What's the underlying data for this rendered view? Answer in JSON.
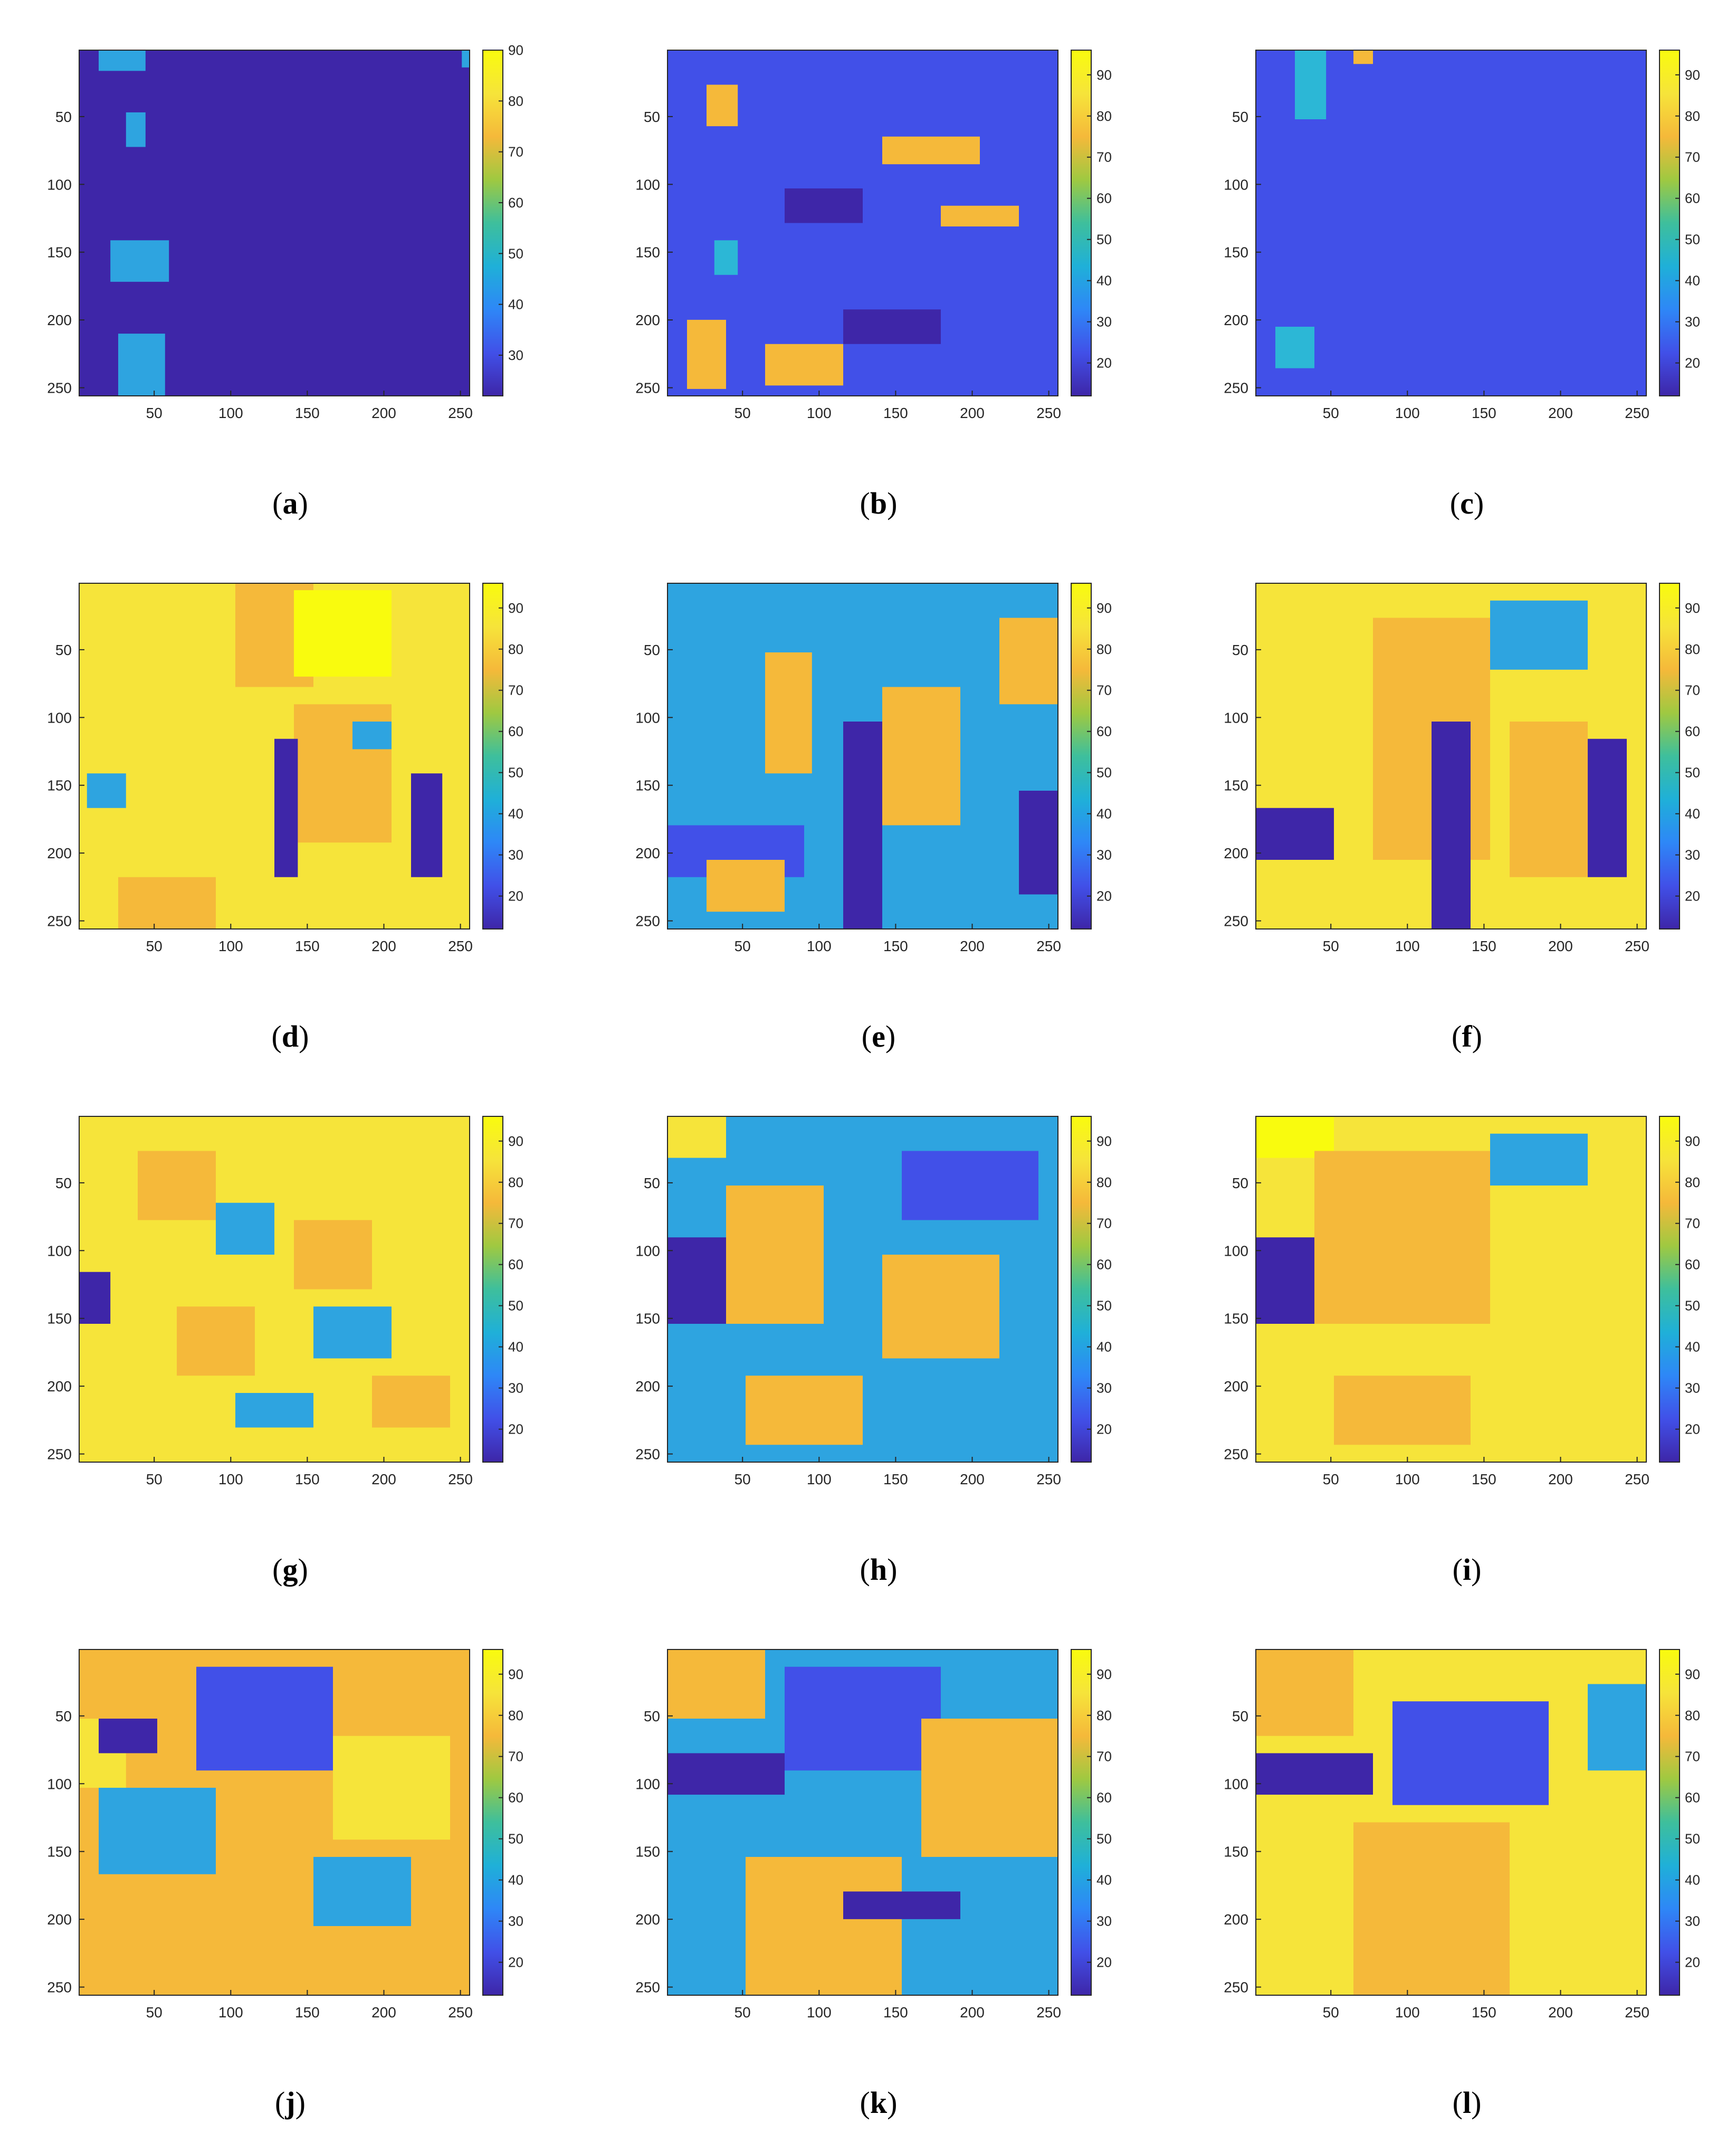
{
  "colors": {
    "c1": "#3e26a8",
    "c2": "#4150e8",
    "c3": "#2ea4e0",
    "c4": "#2cb7d6",
    "c5": "#f5b93a",
    "c6": "#f6e43a",
    "c7": "#f9fb0e"
  },
  "colormap": "parula",
  "chart_data": [
    {
      "type": "heatmap",
      "panel": "a",
      "caption_paren_open": "(",
      "caption_letter": "a",
      "caption_paren_close": ")",
      "xlim": [
        1,
        256
      ],
      "ylim": [
        1,
        256
      ],
      "xticks": [
        "50",
        "100",
        "150",
        "200",
        "250"
      ],
      "yticks": [
        "50",
        "100",
        "150",
        "200",
        "250"
      ],
      "clim": [
        22,
        90
      ],
      "colorbar_ticks": [
        "30",
        "40",
        "50",
        "60",
        "70",
        "80",
        "90"
      ],
      "base": "c1",
      "patches": [
        [
          "c3",
          0.05,
          0.0,
          0.12,
          0.06
        ],
        [
          "c3",
          0.12,
          0.18,
          0.05,
          0.1
        ],
        [
          "c3",
          0.08,
          0.55,
          0.15,
          0.12
        ],
        [
          "c3",
          0.1,
          0.82,
          0.12,
          0.18
        ],
        [
          "c3",
          0.98,
          0.0,
          0.02,
          0.05
        ]
      ]
    },
    {
      "type": "heatmap",
      "panel": "b",
      "caption_paren_open": "(",
      "caption_letter": "b",
      "caption_paren_close": ")",
      "xlim": [
        1,
        256
      ],
      "ylim": [
        1,
        256
      ],
      "xticks": [
        "50",
        "100",
        "150",
        "200",
        "250"
      ],
      "yticks": [
        "50",
        "100",
        "150",
        "200",
        "250"
      ],
      "clim": [
        12,
        96
      ],
      "colorbar_ticks": [
        "20",
        "30",
        "40",
        "50",
        "60",
        "70",
        "80",
        "90"
      ],
      "base": "c2",
      "patches": [
        [
          "c5",
          0.1,
          0.1,
          0.08,
          0.12
        ],
        [
          "c5",
          0.55,
          0.25,
          0.25,
          0.08
        ],
        [
          "c5",
          0.7,
          0.45,
          0.2,
          0.06
        ],
        [
          "c1",
          0.3,
          0.4,
          0.2,
          0.1
        ],
        [
          "c5",
          0.05,
          0.78,
          0.1,
          0.2
        ],
        [
          "c1",
          0.45,
          0.75,
          0.25,
          0.1
        ],
        [
          "c5",
          0.25,
          0.85,
          0.2,
          0.12
        ],
        [
          "c4",
          0.12,
          0.55,
          0.06,
          0.1
        ]
      ]
    },
    {
      "type": "heatmap",
      "panel": "c",
      "caption_paren_open": "(",
      "caption_letter": "c",
      "caption_paren_close": ")",
      "xlim": [
        1,
        256
      ],
      "ylim": [
        1,
        256
      ],
      "xticks": [
        "50",
        "100",
        "150",
        "200",
        "250"
      ],
      "yticks": [
        "50",
        "100",
        "150",
        "200",
        "250"
      ],
      "clim": [
        12,
        96
      ],
      "colorbar_ticks": [
        "20",
        "30",
        "40",
        "50",
        "60",
        "70",
        "80",
        "90"
      ],
      "base": "c2",
      "patches": [
        [
          "c4",
          0.1,
          0.0,
          0.08,
          0.2
        ],
        [
          "c5",
          0.25,
          0.0,
          0.05,
          0.04
        ],
        [
          "c4",
          0.05,
          0.8,
          0.1,
          0.12
        ]
      ]
    },
    {
      "type": "heatmap",
      "panel": "d",
      "caption_paren_open": "(",
      "caption_letter": "d",
      "caption_paren_close": ")",
      "xlim": [
        1,
        256
      ],
      "ylim": [
        1,
        256
      ],
      "xticks": [
        "50",
        "100",
        "150",
        "200",
        "250"
      ],
      "yticks": [
        "50",
        "100",
        "150",
        "200",
        "250"
      ],
      "clim": [
        12,
        96
      ],
      "colorbar_ticks": [
        "20",
        "30",
        "40",
        "50",
        "60",
        "70",
        "80",
        "90"
      ],
      "base": "c6",
      "patches": [
        [
          "c5",
          0.4,
          0.0,
          0.2,
          0.3
        ],
        [
          "c7",
          0.55,
          0.02,
          0.25,
          0.25
        ],
        [
          "c5",
          0.55,
          0.35,
          0.25,
          0.4
        ],
        [
          "c3",
          0.02,
          0.55,
          0.1,
          0.1
        ],
        [
          "c1",
          0.5,
          0.45,
          0.06,
          0.4
        ],
        [
          "c1",
          0.85,
          0.55,
          0.08,
          0.3
        ],
        [
          "c5",
          0.1,
          0.85,
          0.25,
          0.15
        ],
        [
          "c3",
          0.7,
          0.4,
          0.1,
          0.08
        ]
      ]
    },
    {
      "type": "heatmap",
      "panel": "e",
      "caption_paren_open": "(",
      "caption_letter": "e",
      "caption_paren_close": ")",
      "xlim": [
        1,
        256
      ],
      "ylim": [
        1,
        256
      ],
      "xticks": [
        "50",
        "100",
        "150",
        "200",
        "250"
      ],
      "yticks": [
        "50",
        "100",
        "150",
        "200",
        "250"
      ],
      "clim": [
        12,
        96
      ],
      "colorbar_ticks": [
        "20",
        "30",
        "40",
        "50",
        "60",
        "70",
        "80",
        "90"
      ],
      "base": "c3",
      "patches": [
        [
          "c5",
          0.25,
          0.2,
          0.12,
          0.35
        ],
        [
          "c5",
          0.55,
          0.3,
          0.2,
          0.4
        ],
        [
          "c1",
          0.45,
          0.4,
          0.1,
          0.6
        ],
        [
          "c2",
          0.0,
          0.7,
          0.35,
          0.15
        ],
        [
          "c5",
          0.1,
          0.8,
          0.2,
          0.15
        ],
        [
          "c1",
          0.9,
          0.6,
          0.1,
          0.3
        ],
        [
          "c5",
          0.85,
          0.1,
          0.15,
          0.25
        ]
      ]
    },
    {
      "type": "heatmap",
      "panel": "f",
      "caption_paren_open": "(",
      "caption_letter": "f",
      "caption_paren_close": ")",
      "xlim": [
        1,
        256
      ],
      "ylim": [
        1,
        256
      ],
      "xticks": [
        "50",
        "100",
        "150",
        "200",
        "250"
      ],
      "yticks": [
        "50",
        "100",
        "150",
        "200",
        "250"
      ],
      "clim": [
        12,
        96
      ],
      "colorbar_ticks": [
        "20",
        "30",
        "40",
        "50",
        "60",
        "70",
        "80",
        "90"
      ],
      "base": "c6",
      "patches": [
        [
          "c5",
          0.3,
          0.1,
          0.3,
          0.7
        ],
        [
          "c3",
          0.6,
          0.05,
          0.25,
          0.2
        ],
        [
          "c1",
          0.45,
          0.4,
          0.1,
          0.6
        ],
        [
          "c1",
          0.85,
          0.45,
          0.1,
          0.4
        ],
        [
          "c1",
          0.0,
          0.65,
          0.2,
          0.15
        ],
        [
          "c5",
          0.65,
          0.4,
          0.2,
          0.45
        ]
      ]
    },
    {
      "type": "heatmap",
      "panel": "g",
      "caption_paren_open": "(",
      "caption_letter": "g",
      "caption_paren_close": ")",
      "xlim": [
        1,
        256
      ],
      "ylim": [
        1,
        256
      ],
      "xticks": [
        "50",
        "100",
        "150",
        "200",
        "250"
      ],
      "yticks": [
        "50",
        "100",
        "150",
        "200",
        "250"
      ],
      "clim": [
        12,
        96
      ],
      "colorbar_ticks": [
        "20",
        "30",
        "40",
        "50",
        "60",
        "70",
        "80",
        "90"
      ],
      "base": "c6",
      "patches": [
        [
          "c5",
          0.15,
          0.1,
          0.2,
          0.2
        ],
        [
          "c3",
          0.35,
          0.25,
          0.15,
          0.15
        ],
        [
          "c5",
          0.55,
          0.3,
          0.2,
          0.2
        ],
        [
          "c3",
          0.6,
          0.55,
          0.2,
          0.15
        ],
        [
          "c5",
          0.25,
          0.55,
          0.2,
          0.2
        ],
        [
          "c1",
          0.0,
          0.45,
          0.08,
          0.15
        ],
        [
          "c5",
          0.75,
          0.75,
          0.2,
          0.15
        ],
        [
          "c3",
          0.4,
          0.8,
          0.2,
          0.1
        ]
      ]
    },
    {
      "type": "heatmap",
      "panel": "h",
      "caption_paren_open": "(",
      "caption_letter": "h",
      "caption_paren_close": ")",
      "xlim": [
        1,
        256
      ],
      "ylim": [
        1,
        256
      ],
      "xticks": [
        "50",
        "100",
        "150",
        "200",
        "250"
      ],
      "yticks": [
        "50",
        "100",
        "150",
        "200",
        "250"
      ],
      "clim": [
        12,
        96
      ],
      "colorbar_ticks": [
        "20",
        "30",
        "40",
        "50",
        "60",
        "70",
        "80",
        "90"
      ],
      "base": "c3",
      "patches": [
        [
          "c6",
          0.0,
          0.0,
          0.15,
          0.12
        ],
        [
          "c5",
          0.15,
          0.2,
          0.25,
          0.4
        ],
        [
          "c5",
          0.55,
          0.4,
          0.3,
          0.3
        ],
        [
          "c1",
          0.0,
          0.35,
          0.15,
          0.25
        ],
        [
          "c5",
          0.2,
          0.75,
          0.3,
          0.2
        ],
        [
          "c2",
          0.6,
          0.1,
          0.35,
          0.2
        ]
      ]
    },
    {
      "type": "heatmap",
      "panel": "i",
      "caption_paren_open": "(",
      "caption_letter": "i",
      "caption_paren_close": ")",
      "xlim": [
        1,
        256
      ],
      "ylim": [
        1,
        256
      ],
      "xticks": [
        "50",
        "100",
        "150",
        "200",
        "250"
      ],
      "yticks": [
        "50",
        "100",
        "150",
        "200",
        "250"
      ],
      "clim": [
        12,
        96
      ],
      "colorbar_ticks": [
        "20",
        "30",
        "40",
        "50",
        "60",
        "70",
        "80",
        "90"
      ],
      "base": "c6",
      "patches": [
        [
          "c7",
          0.0,
          0.0,
          0.2,
          0.12
        ],
        [
          "c5",
          0.15,
          0.1,
          0.45,
          0.5
        ],
        [
          "c1",
          0.0,
          0.35,
          0.15,
          0.25
        ],
        [
          "c5",
          0.2,
          0.75,
          0.35,
          0.2
        ],
        [
          "c3",
          0.6,
          0.05,
          0.25,
          0.15
        ]
      ]
    },
    {
      "type": "heatmap",
      "panel": "j",
      "caption_paren_open": "(",
      "caption_letter": "j",
      "caption_paren_close": ")",
      "xlim": [
        1,
        256
      ],
      "ylim": [
        1,
        256
      ],
      "xticks": [
        "50",
        "100",
        "150",
        "200",
        "250"
      ],
      "yticks": [
        "50",
        "100",
        "150",
        "200",
        "250"
      ],
      "clim": [
        12,
        96
      ],
      "colorbar_ticks": [
        "20",
        "30",
        "40",
        "50",
        "60",
        "70",
        "80",
        "90"
      ],
      "base": "c5",
      "patches": [
        [
          "c2",
          0.3,
          0.05,
          0.35,
          0.3
        ],
        [
          "c3",
          0.05,
          0.4,
          0.3,
          0.25
        ],
        [
          "c6",
          0.0,
          0.2,
          0.12,
          0.2
        ],
        [
          "c6",
          0.65,
          0.25,
          0.3,
          0.3
        ],
        [
          "c3",
          0.6,
          0.6,
          0.25,
          0.2
        ],
        [
          "c1",
          0.05,
          0.2,
          0.15,
          0.1
        ]
      ]
    },
    {
      "type": "heatmap",
      "panel": "k",
      "caption_paren_open": "(",
      "caption_letter": "k",
      "caption_paren_close": ")",
      "xlim": [
        1,
        256
      ],
      "ylim": [
        1,
        256
      ],
      "xticks": [
        "50",
        "100",
        "150",
        "200",
        "250"
      ],
      "yticks": [
        "50",
        "100",
        "150",
        "200",
        "250"
      ],
      "clim": [
        12,
        96
      ],
      "colorbar_ticks": [
        "20",
        "30",
        "40",
        "50",
        "60",
        "70",
        "80",
        "90"
      ],
      "base": "c3",
      "patches": [
        [
          "c5",
          0.0,
          0.0,
          0.25,
          0.2
        ],
        [
          "c2",
          0.3,
          0.05,
          0.4,
          0.3
        ],
        [
          "c5",
          0.65,
          0.2,
          0.35,
          0.4
        ],
        [
          "c5",
          0.2,
          0.6,
          0.4,
          0.4
        ],
        [
          "c1",
          0.0,
          0.3,
          0.3,
          0.12
        ],
        [
          "c1",
          0.45,
          0.7,
          0.3,
          0.08
        ]
      ]
    },
    {
      "type": "heatmap",
      "panel": "l",
      "caption_paren_open": "(",
      "caption_letter": "l",
      "caption_paren_close": ")",
      "xlim": [
        1,
        256
      ],
      "ylim": [
        1,
        256
      ],
      "xticks": [
        "50",
        "100",
        "150",
        "200",
        "250"
      ],
      "yticks": [
        "50",
        "100",
        "150",
        "200",
        "250"
      ],
      "clim": [
        12,
        96
      ],
      "colorbar_ticks": [
        "20",
        "30",
        "40",
        "50",
        "60",
        "70",
        "80",
        "90"
      ],
      "base": "c6",
      "patches": [
        [
          "c5",
          0.0,
          0.0,
          0.25,
          0.25
        ],
        [
          "c2",
          0.35,
          0.15,
          0.4,
          0.3
        ],
        [
          "c1",
          0.0,
          0.3,
          0.3,
          0.12
        ],
        [
          "c5",
          0.25,
          0.5,
          0.4,
          0.5
        ],
        [
          "c3",
          0.85,
          0.1,
          0.15,
          0.25
        ]
      ]
    }
  ]
}
